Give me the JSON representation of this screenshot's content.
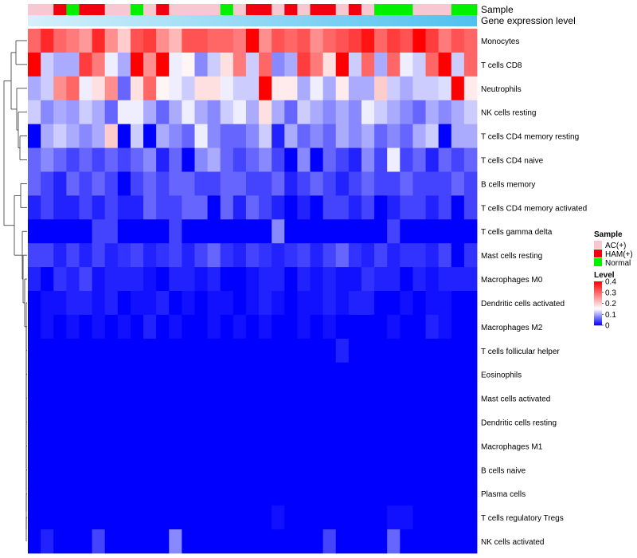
{
  "chart_data": {
    "type": "heatmap",
    "title": "",
    "color_scale": {
      "min": 0,
      "max": 0.4,
      "low": "#0000ff",
      "mid": "#ffffff",
      "high": "#ff0000",
      "mid_value": 0.15
    },
    "annotation_rows": [
      {
        "name": "Sample"
      },
      {
        "name": "Gene expression level"
      }
    ],
    "sample_groups": [
      "AC",
      "AC",
      "HAM",
      "Normal",
      "HAM",
      "HAM",
      "AC",
      "AC",
      "Normal",
      "AC",
      "HAM",
      "AC",
      "AC",
      "AC",
      "AC",
      "Normal",
      "AC",
      "HAM",
      "HAM",
      "AC",
      "HAM",
      "AC",
      "HAM",
      "HAM",
      "AC",
      "HAM",
      "AC",
      "Normal",
      "Normal",
      "Normal",
      "AC",
      "AC",
      "AC",
      "Normal",
      "Normal"
    ],
    "expression_gradient": {
      "from": "#d6f0fb",
      "to": "#4fc0ee"
    },
    "rows": [
      "Monocytes",
      "T cells CD8",
      "Neutrophils",
      "NK cells resting",
      "T cells CD4 memory resting",
      "T cells CD4 naive",
      "B cells memory",
      "T cells CD4 memory activated",
      "T cells gamma delta",
      "Mast cells resting",
      "Macrophages M0",
      "Dendritic cells activated",
      "Macrophages M2",
      "T cells follicular helper",
      "Eosinophils",
      "Mast cells activated",
      "Dendritic cells resting",
      "Macrophages M1",
      "B cells naive",
      "Plasma cells",
      "T cells regulatory  Tregs",
      "NK cells activated"
    ],
    "values": [
      [
        0.3,
        0.36,
        0.3,
        0.28,
        0.25,
        0.36,
        0.26,
        0.2,
        0.32,
        0.34,
        0.26,
        0.22,
        0.32,
        0.32,
        0.3,
        0.3,
        0.28,
        0.4,
        0.26,
        0.32,
        0.3,
        0.32,
        0.26,
        0.3,
        0.32,
        0.34,
        0.38,
        0.3,
        0.34,
        0.32,
        0.4,
        0.34,
        0.28,
        0.32,
        0.3
      ],
      [
        0.4,
        0.12,
        0.1,
        0.1,
        0.34,
        0.28,
        0.14,
        0.1,
        0.4,
        0.26,
        0.4,
        0.14,
        0.16,
        0.08,
        0.12,
        0.18,
        0.28,
        0.12,
        0.3,
        0.08,
        0.1,
        0.34,
        0.28,
        0.18,
        0.4,
        0.12,
        0.3,
        0.1,
        0.3,
        0.14,
        0.12,
        0.3,
        0.4,
        0.12,
        0.3
      ],
      [
        0.1,
        0.12,
        0.26,
        0.3,
        0.14,
        0.18,
        0.26,
        0.06,
        0.18,
        0.3,
        0.16,
        0.14,
        0.12,
        0.18,
        0.18,
        0.14,
        0.12,
        0.12,
        0.4,
        0.17,
        0.17,
        0.1,
        0.14,
        0.1,
        0.17,
        0.1,
        0.1,
        0.2,
        0.12,
        0.1,
        0.12,
        0.12,
        0.13,
        0.4,
        0.17
      ],
      [
        0.12,
        0.08,
        0.1,
        0.09,
        0.12,
        0.1,
        0.06,
        0.14,
        0.14,
        0.1,
        0.06,
        0.1,
        0.14,
        0.1,
        0.08,
        0.12,
        0.14,
        0.1,
        0.18,
        0.1,
        0.06,
        0.12,
        0.1,
        0.08,
        0.1,
        0.08,
        0.14,
        0.12,
        0.1,
        0.08,
        0.06,
        0.1,
        0.08,
        0.1,
        0.12
      ],
      [
        0.0,
        0.1,
        0.12,
        0.1,
        0.08,
        0.1,
        0.2,
        0.0,
        0.12,
        0.0,
        0.1,
        0.08,
        0.06,
        0.14,
        0.08,
        0.06,
        0.06,
        0.08,
        0.12,
        0.02,
        0.1,
        0.06,
        0.08,
        0.06,
        0.1,
        0.08,
        0.1,
        0.06,
        0.08,
        0.06,
        0.1,
        0.12,
        0.0,
        0.1,
        0.1
      ],
      [
        0.06,
        0.08,
        0.06,
        0.04,
        0.06,
        0.04,
        0.06,
        0.04,
        0.06,
        0.08,
        0.02,
        0.06,
        0.0,
        0.08,
        0.1,
        0.06,
        0.04,
        0.06,
        0.08,
        0.04,
        0.0,
        0.08,
        0.0,
        0.06,
        0.04,
        0.02,
        0.08,
        0.04,
        0.14,
        0.04,
        0.06,
        0.02,
        0.06,
        0.04,
        0.06
      ],
      [
        0.06,
        0.04,
        0.02,
        0.06,
        0.04,
        0.06,
        0.04,
        0.0,
        0.04,
        0.06,
        0.04,
        0.06,
        0.06,
        0.04,
        0.04,
        0.06,
        0.06,
        0.04,
        0.04,
        0.06,
        0.02,
        0.04,
        0.06,
        0.04,
        0.02,
        0.04,
        0.06,
        0.04,
        0.04,
        0.06,
        0.04,
        0.04,
        0.04,
        0.06,
        0.04
      ],
      [
        0.02,
        0.04,
        0.02,
        0.02,
        0.04,
        0.02,
        0.04,
        0.02,
        0.02,
        0.06,
        0.04,
        0.04,
        0.06,
        0.06,
        0.0,
        0.06,
        0.02,
        0.06,
        0.04,
        0.02,
        0.0,
        0.02,
        0.0,
        0.04,
        0.04,
        0.02,
        0.04,
        0.0,
        0.02,
        0.04,
        0.04,
        0.02,
        0.04,
        0.0,
        0.04
      ],
      [
        0.0,
        0.0,
        0.0,
        0.0,
        0.0,
        0.04,
        0.04,
        0.0,
        0.0,
        0.0,
        0.0,
        0.04,
        0.0,
        0.0,
        0.0,
        0.0,
        0.0,
        0.0,
        0.0,
        0.08,
        0.0,
        0.0,
        0.0,
        0.0,
        0.0,
        0.0,
        0.0,
        0.0,
        0.04,
        0.0,
        0.0,
        0.0,
        0.0,
        0.0,
        0.0
      ],
      [
        0.04,
        0.04,
        0.02,
        0.04,
        0.02,
        0.04,
        0.02,
        0.03,
        0.04,
        0.02,
        0.03,
        0.04,
        0.02,
        0.04,
        0.06,
        0.03,
        0.02,
        0.04,
        0.03,
        0.02,
        0.03,
        0.04,
        0.02,
        0.04,
        0.06,
        0.03,
        0.02,
        0.04,
        0.02,
        0.03,
        0.03,
        0.02,
        0.04,
        0.0,
        0.03
      ],
      [
        0.02,
        0.0,
        0.03,
        0.02,
        0.04,
        0.01,
        0.02,
        0.02,
        0.02,
        0.01,
        0.0,
        0.02,
        0.02,
        0.01,
        0.02,
        0.0,
        0.0,
        0.01,
        0.02,
        0.02,
        0.0,
        0.02,
        0.01,
        0.02,
        0.01,
        0.01,
        0.03,
        0.02,
        0.02,
        0.0,
        0.02,
        0.01,
        0.02,
        0.02,
        0.02
      ],
      [
        0.0,
        0.01,
        0.01,
        0.02,
        0.02,
        0.01,
        0.02,
        0.0,
        0.01,
        0.01,
        0.02,
        0.0,
        0.01,
        0.0,
        0.01,
        0.01,
        0.0,
        0.01,
        0.02,
        0.01,
        0.0,
        0.01,
        0.01,
        0.02,
        0.01,
        0.02,
        0.02,
        0.0,
        0.0,
        0.01,
        0.0,
        0.01,
        0.01,
        0.0,
        0.0
      ],
      [
        0.0,
        0.01,
        0.0,
        0.01,
        0.0,
        0.01,
        0.0,
        0.01,
        0.0,
        0.02,
        0.0,
        0.01,
        0.0,
        0.0,
        0.01,
        0.0,
        0.01,
        0.0,
        0.01,
        0.0,
        0.0,
        0.01,
        0.0,
        0.01,
        0.0,
        0.0,
        0.0,
        0.0,
        0.01,
        0.0,
        0.0,
        0.02,
        0.01,
        0.0,
        0.0
      ],
      [
        0.0,
        0.0,
        0.0,
        0.0,
        0.0,
        0.0,
        0.0,
        0.0,
        0.0,
        0.0,
        0.0,
        0.0,
        0.0,
        0.0,
        0.0,
        0.0,
        0.0,
        0.0,
        0.0,
        0.0,
        0.0,
        0.0,
        0.0,
        0.0,
        0.02,
        0.0,
        0.0,
        0.0,
        0.0,
        0.0,
        0.0,
        0.0,
        0.0,
        0.0,
        0.0
      ],
      [
        0.0,
        0.0,
        0.0,
        0.0,
        0.0,
        0.0,
        0.0,
        0.0,
        0.0,
        0.0,
        0.0,
        0.0,
        0.0,
        0.0,
        0.0,
        0.0,
        0.0,
        0.0,
        0.0,
        0.0,
        0.0,
        0.0,
        0.0,
        0.0,
        0.0,
        0.0,
        0.0,
        0.0,
        0.0,
        0.0,
        0.0,
        0.0,
        0.0,
        0.0,
        0.0
      ],
      [
        0.0,
        0.0,
        0.0,
        0.0,
        0.0,
        0.0,
        0.0,
        0.0,
        0.0,
        0.0,
        0.0,
        0.0,
        0.0,
        0.0,
        0.0,
        0.0,
        0.0,
        0.0,
        0.0,
        0.0,
        0.0,
        0.0,
        0.0,
        0.0,
        0.0,
        0.0,
        0.0,
        0.0,
        0.0,
        0.0,
        0.0,
        0.0,
        0.0,
        0.0,
        0.0
      ],
      [
        0.0,
        0.0,
        0.0,
        0.0,
        0.0,
        0.0,
        0.0,
        0.0,
        0.0,
        0.0,
        0.0,
        0.0,
        0.0,
        0.0,
        0.0,
        0.0,
        0.0,
        0.0,
        0.0,
        0.0,
        0.0,
        0.0,
        0.0,
        0.0,
        0.0,
        0.0,
        0.0,
        0.0,
        0.0,
        0.0,
        0.0,
        0.0,
        0.0,
        0.0,
        0.0
      ],
      [
        0.0,
        0.0,
        0.0,
        0.0,
        0.0,
        0.0,
        0.0,
        0.0,
        0.0,
        0.0,
        0.0,
        0.0,
        0.0,
        0.0,
        0.0,
        0.0,
        0.0,
        0.0,
        0.0,
        0.0,
        0.0,
        0.0,
        0.0,
        0.0,
        0.0,
        0.0,
        0.0,
        0.0,
        0.0,
        0.0,
        0.0,
        0.0,
        0.0,
        0.0,
        0.0
      ],
      [
        0.0,
        0.0,
        0.0,
        0.0,
        0.0,
        0.0,
        0.0,
        0.0,
        0.0,
        0.0,
        0.0,
        0.0,
        0.0,
        0.0,
        0.0,
        0.0,
        0.0,
        0.0,
        0.0,
        0.0,
        0.0,
        0.0,
        0.0,
        0.0,
        0.0,
        0.0,
        0.0,
        0.0,
        0.0,
        0.0,
        0.0,
        0.0,
        0.0,
        0.0,
        0.0
      ],
      [
        0.0,
        0.0,
        0.0,
        0.0,
        0.0,
        0.0,
        0.0,
        0.0,
        0.0,
        0.0,
        0.0,
        0.0,
        0.0,
        0.0,
        0.0,
        0.0,
        0.0,
        0.0,
        0.0,
        0.0,
        0.0,
        0.0,
        0.0,
        0.0,
        0.0,
        0.0,
        0.0,
        0.0,
        0.0,
        0.0,
        0.0,
        0.0,
        0.0,
        0.0,
        0.0
      ],
      [
        0.0,
        0.0,
        0.0,
        0.0,
        0.0,
        0.0,
        0.0,
        0.0,
        0.0,
        0.0,
        0.0,
        0.0,
        0.0,
        0.0,
        0.0,
        0.0,
        0.0,
        0.0,
        0.0,
        0.01,
        0.0,
        0.0,
        0.0,
        0.0,
        0.0,
        0.0,
        0.0,
        0.0,
        0.01,
        0.01,
        0.0,
        0.0,
        0.0,
        0.0,
        0.0
      ],
      [
        0.0,
        0.02,
        0.0,
        0.0,
        0.0,
        0.04,
        0.0,
        0.0,
        0.0,
        0.0,
        0.0,
        0.08,
        0.0,
        0.0,
        0.0,
        0.0,
        0.0,
        0.0,
        0.0,
        0.0,
        0.0,
        0.0,
        0.0,
        0.04,
        0.0,
        0.0,
        0.0,
        0.0,
        0.06,
        0.0,
        0.0,
        0.0,
        0.0,
        0.0,
        0.0
      ]
    ],
    "legend": {
      "sample_title": "Sample",
      "sample_items": [
        {
          "key": "AC",
          "label": "AC(+)",
          "color": "#f7c8d2"
        },
        {
          "key": "HAM",
          "label": "HAM(+)",
          "color": "#f2000f"
        },
        {
          "key": "Normal",
          "label": "Normal",
          "color": "#00f000"
        }
      ],
      "level_title": "Level",
      "level_ticks": [
        0.4,
        0.3,
        0.2,
        0.1,
        0
      ],
      "level_tick_labels": [
        "0.4",
        "0.3",
        "0.2",
        "0.1",
        "0"
      ]
    }
  }
}
